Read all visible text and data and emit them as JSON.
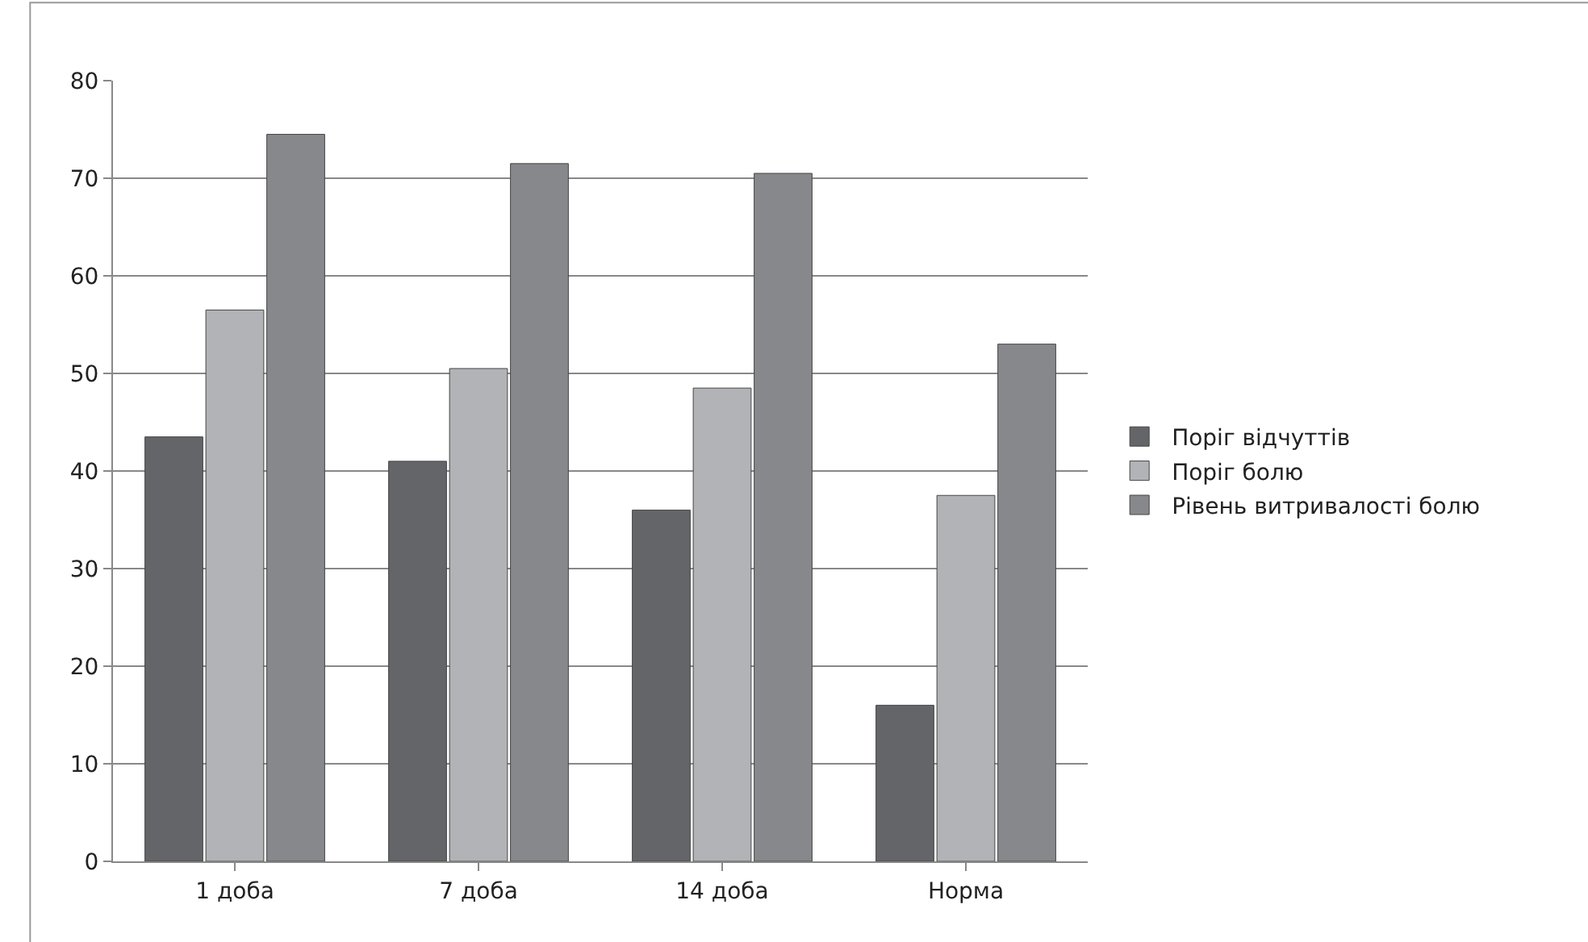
{
  "chart_data": {
    "type": "bar",
    "categories": [
      "1 доба",
      "7 доба",
      "14 доба",
      "Норма"
    ],
    "series": [
      {
        "name": "Поріг відчуттів",
        "color": "#646569",
        "values": [
          43.5,
          41,
          36,
          16
        ]
      },
      {
        "name": "Поріг болю",
        "color": "#b1b3b6",
        "values": [
          56.5,
          50.5,
          48.5,
          37.5
        ]
      },
      {
        "name": "Рівень витривалості болю",
        "color": "#87888c",
        "values": [
          74.5,
          71.5,
          70.5,
          53
        ]
      }
    ],
    "ylim": [
      0,
      80
    ],
    "yticks": [
      0,
      10,
      20,
      30,
      40,
      50,
      60,
      70,
      80
    ],
    "grid": "y",
    "legend": "right"
  }
}
